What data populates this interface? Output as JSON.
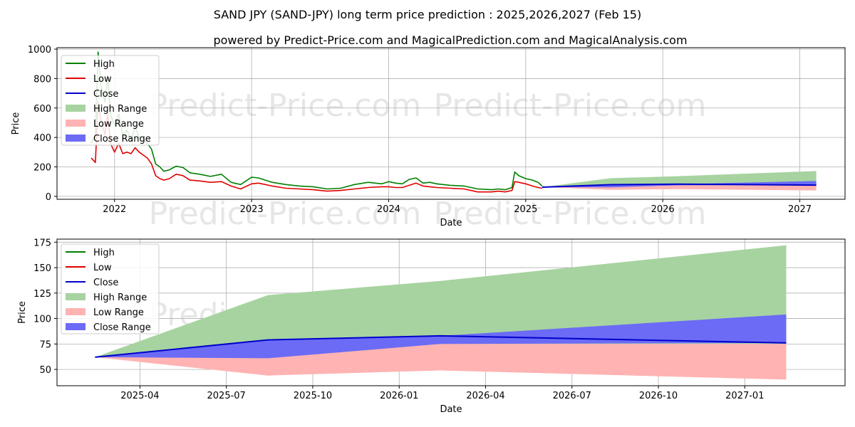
{
  "title": "SAND JPY (SAND-JPY) long term price prediction : 2025,2026,2027 (Feb 15)",
  "subtitle": "powered by Predict-Price.com and MagicalPrediction.com and MagicalAnalysis.com",
  "watermark": "Predict-Price.com",
  "colors": {
    "high": "#008000",
    "low": "#e00000",
    "close": "#0000cc",
    "high_range": "#a7d3a0",
    "low_range": "#ffb3b3",
    "close_range": "#6b6bf5"
  },
  "legend": [
    "High",
    "Low",
    "Close",
    "High Range",
    "Low Range",
    "Close Range"
  ],
  "chart_data": [
    {
      "type": "line",
      "name": "long-term",
      "xlabel": "Date",
      "ylabel": "Price",
      "xlim": [
        2021.58,
        2027.33
      ],
      "ylim": [
        -20,
        1010
      ],
      "xticks": [
        2022,
        2023,
        2024,
        2025,
        2026,
        2027
      ],
      "xtick_labels": [
        "2022",
        "2023",
        "2024",
        "2025",
        "2026",
        "2027"
      ],
      "yticks": [
        0,
        200,
        400,
        600,
        800,
        1000
      ],
      "ytick_labels": [
        "0",
        "200",
        "400",
        "600",
        "800",
        "1000"
      ],
      "grid": true,
      "legend_position": "top-left",
      "history": {
        "x": [
          2021.83,
          2021.86,
          2021.88,
          2021.9,
          2021.93,
          2021.95,
          2021.97,
          2022.0,
          2022.03,
          2022.06,
          2022.09,
          2022.12,
          2022.15,
          2022.18,
          2022.21,
          2022.24,
          2022.27,
          2022.3,
          2022.33,
          2022.36,
          2022.4,
          2022.45,
          2022.5,
          2022.55,
          2022.62,
          2022.7,
          2022.78,
          2022.85,
          2022.92,
          2023.0,
          2023.05,
          2023.1,
          2023.15,
          2023.25,
          2023.35,
          2023.45,
          2023.55,
          2023.65,
          2023.75,
          2023.85,
          2023.95,
          2024.0,
          2024.05,
          2024.1,
          2024.15,
          2024.2,
          2024.25,
          2024.3,
          2024.35,
          2024.45,
          2024.55,
          2024.65,
          2024.75,
          2024.8,
          2024.85,
          2024.9,
          2024.92,
          2024.95,
          2025.0,
          2025.05,
          2025.09,
          2025.12
        ],
        "high": [
          360,
          420,
          980,
          760,
          640,
          820,
          560,
          480,
          560,
          420,
          450,
          380,
          470,
          400,
          390,
          360,
          320,
          220,
          200,
          170,
          180,
          205,
          195,
          160,
          150,
          135,
          150,
          95,
          80,
          130,
          125,
          110,
          95,
          80,
          70,
          65,
          50,
          55,
          80,
          95,
          85,
          100,
          90,
          85,
          115,
          125,
          90,
          95,
          85,
          75,
          70,
          50,
          45,
          50,
          45,
          60,
          165,
          140,
          120,
          110,
          95,
          70
        ],
        "low": [
          260,
          230,
          640,
          520,
          420,
          560,
          360,
          300,
          360,
          290,
          300,
          290,
          330,
          300,
          280,
          260,
          220,
          140,
          120,
          110,
          120,
          150,
          140,
          110,
          105,
          95,
          100,
          70,
          50,
          85,
          90,
          80,
          70,
          55,
          50,
          45,
          35,
          40,
          50,
          60,
          65,
          65,
          60,
          60,
          75,
          90,
          70,
          65,
          60,
          55,
          50,
          30,
          30,
          35,
          30,
          40,
          100,
          95,
          85,
          70,
          60,
          55
        ]
      },
      "forecast": {
        "x": [
          2025.12,
          2025.62,
          2026.12,
          2027.12
        ],
        "high_range_upper": [
          62,
          123,
          137,
          172
        ],
        "high_range_lower": [
          62,
          62,
          75,
          75
        ],
        "low_range_upper": [
          62,
          62,
          75,
          75
        ],
        "low_range_lower": [
          62,
          44,
          49,
          40
        ],
        "close": [
          62,
          79,
          83,
          76
        ],
        "close_range_upper": [
          62,
          79,
          83,
          104
        ],
        "close_range_lower": [
          62,
          61,
          75,
          76
        ]
      }
    },
    {
      "type": "line",
      "name": "forecast-detail",
      "xlabel": "Date",
      "ylabel": "Price",
      "xlim": [
        2025.01,
        2027.29
      ],
      "ylim": [
        34,
        178
      ],
      "xticks": [
        2025.25,
        2025.5,
        2025.75,
        2026.0,
        2026.25,
        2026.5,
        2026.75,
        2027.0
      ],
      "xtick_labels": [
        "2025-04",
        "2025-07",
        "2025-10",
        "2026-01",
        "2026-04",
        "2026-07",
        "2026-10",
        "2027-01"
      ],
      "yticks": [
        50,
        75,
        100,
        125,
        150,
        175
      ],
      "ytick_labels": [
        "50",
        "75",
        "100",
        "125",
        "150",
        "175"
      ],
      "grid": true,
      "legend_position": "top-left",
      "forecast": {
        "x": [
          2025.12,
          2025.62,
          2026.12,
          2027.12
        ],
        "high_range_upper": [
          62,
          123,
          137,
          172
        ],
        "high_range_lower": [
          62,
          62,
          75,
          75
        ],
        "low_range_upper": [
          62,
          62,
          75,
          75
        ],
        "low_range_lower": [
          62,
          44,
          49,
          40
        ],
        "close": [
          62,
          79,
          83,
          76
        ],
        "close_range_upper": [
          62,
          79,
          83,
          104
        ],
        "close_range_lower": [
          62,
          61,
          75,
          76
        ]
      }
    }
  ]
}
